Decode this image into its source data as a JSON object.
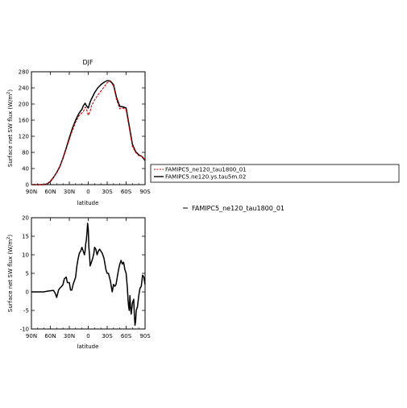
{
  "chart_data": [
    {
      "type": "line",
      "title": "DJF",
      "xlabel": "latitude",
      "ylabel": "Surface net SW flux (W/m²)",
      "xlim": [
        90,
        -90
      ],
      "ylim": [
        0,
        280
      ],
      "xticks": [
        90,
        60,
        30,
        0,
        -30,
        -60,
        -90
      ],
      "xtick_labels": [
        "90N",
        "60N",
        "30N",
        "0",
        "30S",
        "60S",
        "90S"
      ],
      "yticks": [
        0,
        40,
        80,
        120,
        160,
        200,
        240,
        280
      ],
      "ytick_labels": [
        "0",
        "40",
        "80",
        "120",
        "160",
        "200",
        "240",
        "280"
      ],
      "legend": "right",
      "series": [
        {
          "name": "FAMIPC5_ne120_tau1800_01",
          "color": "#cc0000",
          "dash": "dashed",
          "x": [
            90,
            80,
            70,
            65,
            60,
            55,
            50,
            45,
            40,
            35,
            30,
            25,
            20,
            15,
            12,
            10,
            8,
            5,
            3,
            0,
            -3,
            -5,
            -10,
            -15,
            -20,
            -25,
            -30,
            -35,
            -40,
            -45,
            -50,
            -55,
            -60,
            -65,
            -70,
            -75,
            -80,
            -85,
            -90
          ],
          "y": [
            0,
            0,
            0,
            2,
            8,
            18,
            30,
            45,
            65,
            88,
            112,
            135,
            155,
            170,
            175,
            178,
            180,
            192,
            189,
            172,
            182,
            195,
            210,
            222,
            232,
            242,
            253,
            256,
            245,
            210,
            188,
            190,
            185,
            140,
            95,
            80,
            72,
            70,
            62
          ]
        },
        {
          "name": "FAMIPC5.ne120.ys.tau5m.02",
          "color": "#000000",
          "dash": "solid",
          "x": [
            90,
            80,
            70,
            65,
            60,
            55,
            50,
            45,
            40,
            35,
            30,
            25,
            20,
            15,
            12,
            10,
            8,
            5,
            3,
            0,
            -3,
            -5,
            -10,
            -15,
            -20,
            -25,
            -30,
            -35,
            -40,
            -45,
            -50,
            -55,
            -60,
            -65,
            -70,
            -75,
            -80,
            -85,
            -90
          ],
          "y": [
            0,
            0,
            0,
            2,
            8,
            18,
            30,
            45,
            66,
            90,
            116,
            140,
            160,
            176,
            183,
            187,
            195,
            202,
            196,
            190,
            205,
            212,
            228,
            240,
            248,
            254,
            258,
            257,
            248,
            215,
            194,
            193,
            190,
            145,
            100,
            82,
            74,
            70,
            60
          ]
        }
      ]
    },
    {
      "type": "line",
      "title": "",
      "xlabel": "latitude",
      "ylabel": "Surface net SW flux (W/m²)",
      "xlim": [
        90,
        -90
      ],
      "ylim": [
        -10,
        20
      ],
      "xticks": [
        90,
        60,
        30,
        0,
        -30,
        -60,
        -90
      ],
      "xtick_labels": [
        "90N",
        "60N",
        "30N",
        "0",
        "30S",
        "60S",
        "90S"
      ],
      "yticks": [
        -10,
        -5,
        0,
        5,
        10,
        15,
        20
      ],
      "ytick_labels": [
        "-10",
        "-5",
        "0",
        "5",
        "10",
        "15",
        "20"
      ],
      "legend": "right",
      "series": [
        {
          "name": "FAMIPC5_ne120_tau1800_01",
          "color": "#000000",
          "dash": "solid",
          "x": [
            90,
            80,
            70,
            65,
            60,
            55,
            52,
            50,
            47,
            45,
            42,
            40,
            38,
            35,
            33,
            30,
            28,
            26,
            24,
            22,
            20,
            18,
            16,
            14,
            12,
            10,
            8,
            6,
            5,
            4,
            3,
            2,
            1,
            0,
            -1,
            -2,
            -3,
            -5,
            -7,
            -9,
            -10,
            -12,
            -14,
            -16,
            -18,
            -20,
            -22,
            -25,
            -28,
            -30,
            -32,
            -35,
            -38,
            -40,
            -42,
            -44,
            -46,
            -48,
            -50,
            -52,
            -54,
            -56,
            -58,
            -60,
            -62,
            -63,
            -64,
            -65,
            -66,
            -67,
            -68,
            -70,
            -72,
            -73,
            -74,
            -75,
            -76,
            -78,
            -80,
            -82,
            -84,
            -86,
            -88,
            -90
          ],
          "y": [
            0,
            0,
            0,
            0.2,
            0.3,
            0.4,
            -0.5,
            -1.5,
            0.5,
            1,
            1.5,
            2,
            3.5,
            4,
            2.5,
            2.5,
            0.5,
            0.5,
            2,
            3,
            4,
            7,
            9,
            10.5,
            11,
            12,
            11,
            10,
            11,
            13,
            14,
            16,
            18.5,
            17,
            12,
            10,
            7,
            8,
            9,
            10.5,
            12,
            11.5,
            10,
            11,
            11.5,
            11,
            10.5,
            9,
            6,
            5,
            5,
            3,
            0,
            2,
            1.5,
            2,
            4,
            6,
            7.5,
            8.5,
            7.5,
            8,
            6,
            5,
            1,
            -2,
            -4,
            -5,
            -1,
            -4,
            -6,
            -3,
            -2,
            -6,
            -9,
            -8,
            -5,
            -4,
            -1,
            1,
            1.5,
            4.5,
            4,
            2
          ]
        }
      ]
    }
  ]
}
